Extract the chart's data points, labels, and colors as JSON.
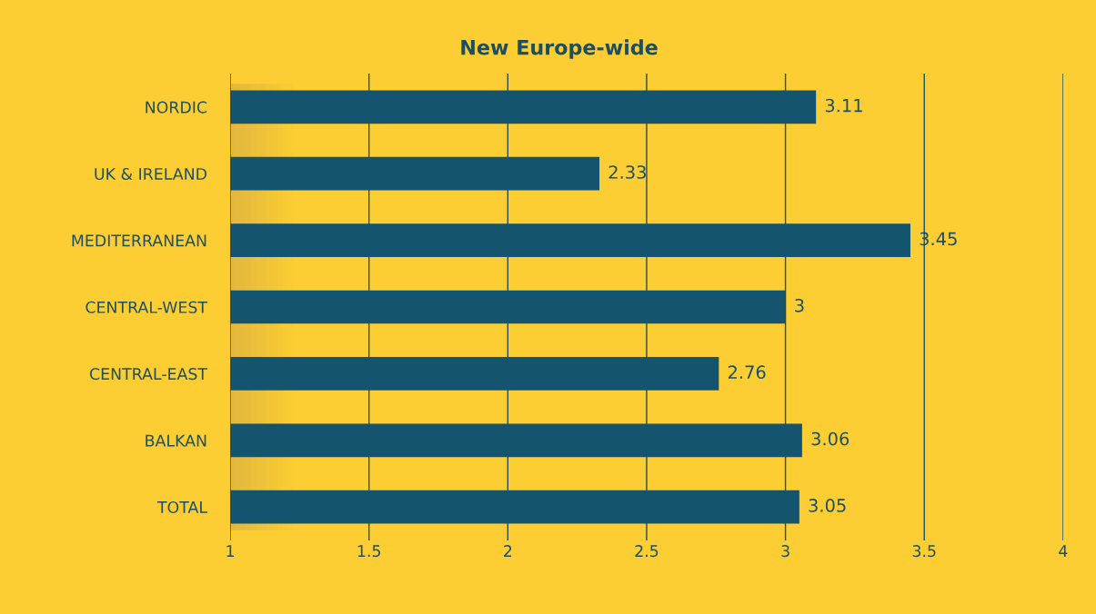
{
  "chart_data": {
    "type": "bar",
    "orientation": "horizontal",
    "title": "New Europe-wide",
    "categories": [
      "NORDIC",
      "UK & IRELAND",
      "MEDITERRANEAN",
      "CENTRAL-WEST",
      "CENTRAL-EAST",
      "BALKAN",
      "TOTAL"
    ],
    "values": [
      3.11,
      2.33,
      3.45,
      3,
      2.76,
      3.06,
      3.05
    ],
    "color": "#14546e",
    "xlim": [
      1,
      4
    ],
    "xticks": [
      1,
      1.5,
      2,
      2.5,
      3,
      3.5,
      4
    ],
    "grid": "x",
    "data_labels": true
  }
}
